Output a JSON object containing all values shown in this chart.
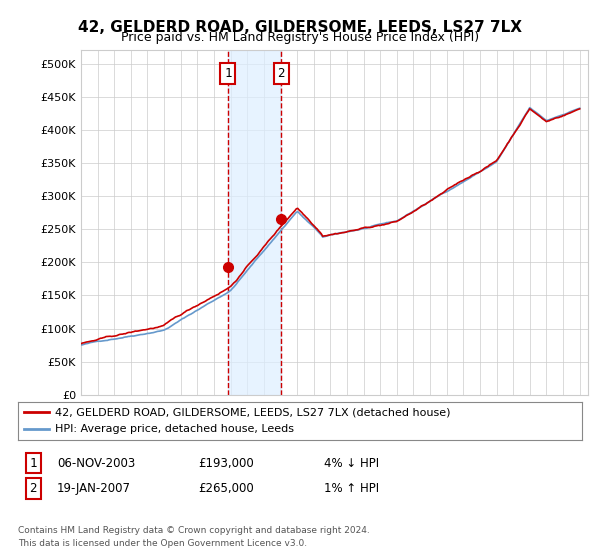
{
  "title": "42, GELDERD ROAD, GILDERSOME, LEEDS, LS27 7LX",
  "subtitle": "Price paid vs. HM Land Registry's House Price Index (HPI)",
  "legend_line1": "42, GELDERD ROAD, GILDERSOME, LEEDS, LS27 7LX (detached house)",
  "legend_line2": "HPI: Average price, detached house, Leeds",
  "sale1_date": "06-NOV-2003",
  "sale1_price": 193000,
  "sale1_label": "4% ↓ HPI",
  "sale2_date": "19-JAN-2007",
  "sale2_price": 265000,
  "sale2_label": "1% ↑ HPI",
  "footnote1": "Contains HM Land Registry data © Crown copyright and database right 2024.",
  "footnote2": "This data is licensed under the Open Government Licence v3.0.",
  "hpi_color": "#6699cc",
  "price_color": "#cc0000",
  "shade_color": "#ddeeff",
  "marker_color": "#cc0000",
  "grid_color": "#cccccc",
  "background_color": "#ffffff",
  "ylim": [
    0,
    520000
  ],
  "yticks": [
    0,
    50000,
    100000,
    150000,
    200000,
    250000,
    300000,
    350000,
    400000,
    450000,
    500000
  ],
  "start_year": 1995,
  "end_year": 2025
}
